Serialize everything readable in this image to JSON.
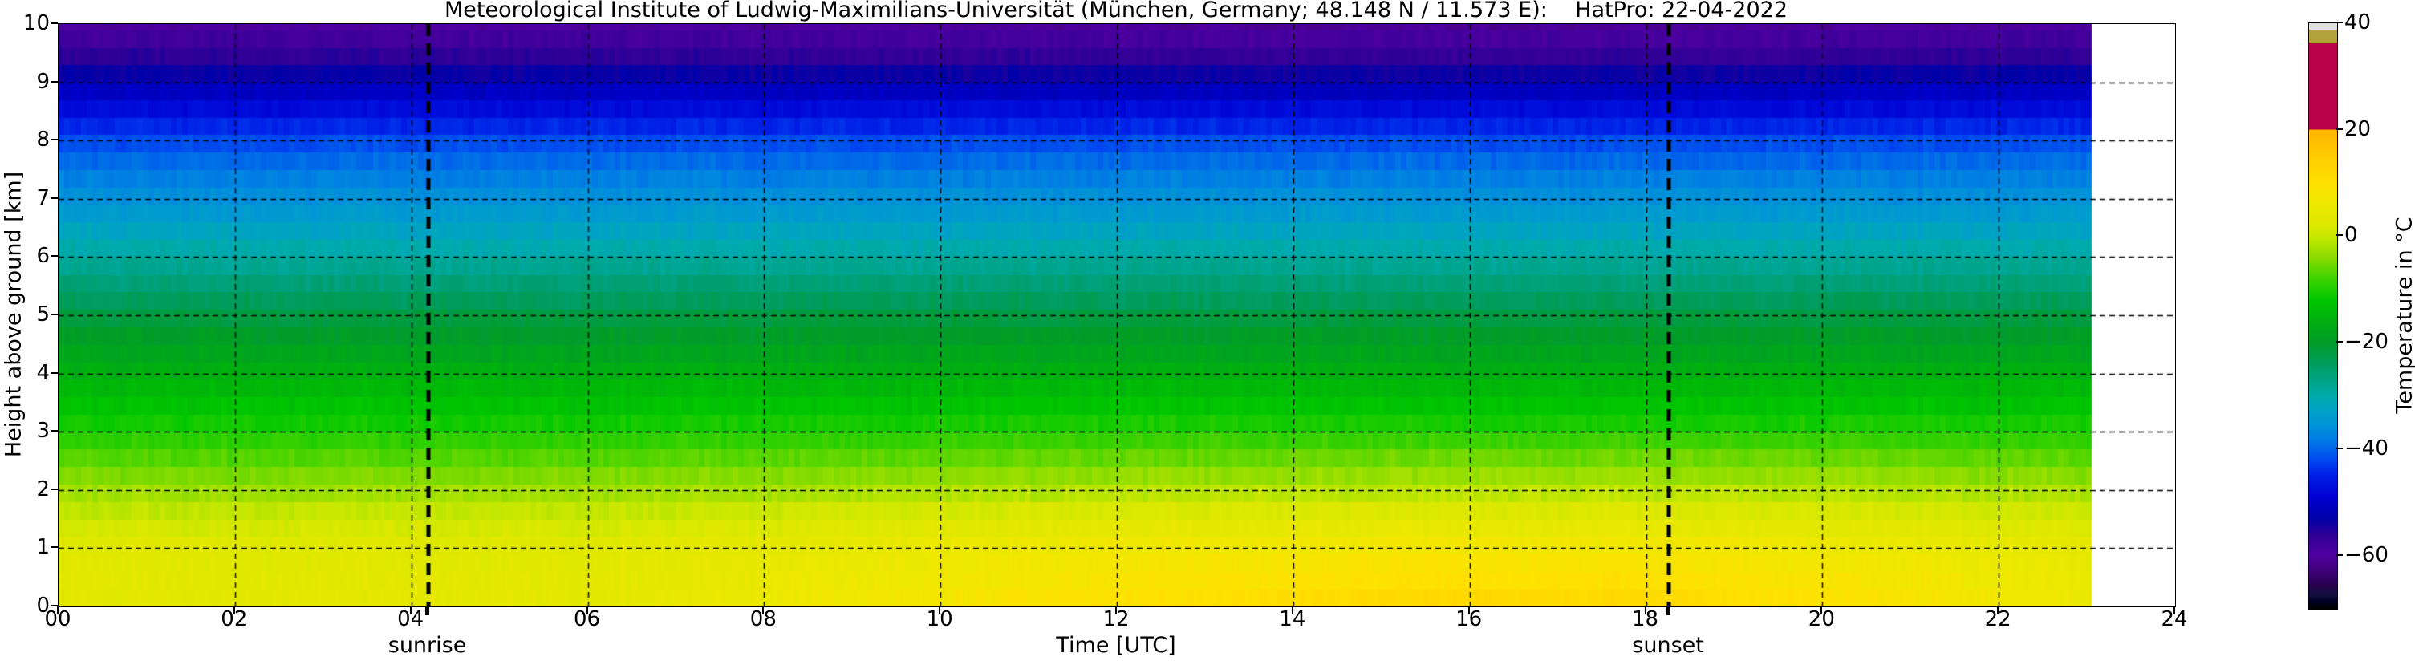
{
  "title": "Meteorological Institute of Ludwig-Maximilians-Universität (München, Germany; 48.148 N / 11.573 E):    HatPro: 22-04-2022",
  "axes": {
    "x": {
      "label": "Time [UTC]",
      "range_hours": [
        0,
        24
      ],
      "ticks": [
        {
          "hour": 0,
          "label": "00"
        },
        {
          "hour": 2,
          "label": "02"
        },
        {
          "hour": 4,
          "label": "04"
        },
        {
          "hour": 6,
          "label": "06"
        },
        {
          "hour": 8,
          "label": "08"
        },
        {
          "hour": 10,
          "label": "10"
        },
        {
          "hour": 12,
          "label": "12"
        },
        {
          "hour": 14,
          "label": "14"
        },
        {
          "hour": 16,
          "label": "16"
        },
        {
          "hour": 18,
          "label": "18"
        },
        {
          "hour": 20,
          "label": "20"
        },
        {
          "hour": 22,
          "label": "22"
        },
        {
          "hour": 24,
          "label": "24"
        }
      ]
    },
    "y": {
      "label": "Height above ground [km]",
      "range_km": [
        0,
        10
      ],
      "ticks": [
        {
          "km": 0,
          "label": "0"
        },
        {
          "km": 1,
          "label": "1"
        },
        {
          "km": 2,
          "label": "2"
        },
        {
          "km": 3,
          "label": "3"
        },
        {
          "km": 4,
          "label": "4"
        },
        {
          "km": 5,
          "label": "5"
        },
        {
          "km": 6,
          "label": "6"
        },
        {
          "km": 7,
          "label": "7"
        },
        {
          "km": 8,
          "label": "8"
        },
        {
          "km": 9,
          "label": "9"
        },
        {
          "km": 10,
          "label": "10"
        }
      ]
    }
  },
  "annotations": {
    "sunrise": {
      "label": "sunrise",
      "hour": 4.19
    },
    "sunset": {
      "label": "sunset",
      "hour": 18.26
    }
  },
  "colorbar": {
    "label": "Temperature in  °C",
    "range": [
      -70,
      40
    ],
    "ticks": [
      {
        "value": 40,
        "label": "40"
      },
      {
        "value": 20,
        "label": "20"
      },
      {
        "value": 0,
        "label": "0"
      },
      {
        "value": -20,
        "label": "−20"
      },
      {
        "value": -40,
        "label": "−40"
      },
      {
        "value": -60,
        "label": "−60"
      }
    ]
  },
  "chart_data": {
    "type": "heatmap",
    "title": "Meteorological Institute of Ludwig-Maximilians-Universität (München, Germany; 48.148 N / 11.573 E):    HatPro: 22-04-2022",
    "xlabel": "Time [UTC]",
    "ylabel": "Height above ground [km]",
    "x_range_hours": [
      0,
      24
    ],
    "data_end_hour": 23.05,
    "y_range_km": [
      0,
      10
    ],
    "colorbar_label": "Temperature in  °C",
    "colorbar_range_c": [
      -70,
      40
    ],
    "sunrise_hour": 4.19,
    "sunset_hour": 18.26,
    "gridline_hours": [
      2,
      4,
      6,
      8,
      10,
      12,
      14,
      16,
      18,
      20,
      22
    ],
    "gridline_km": [
      1,
      2,
      3,
      4,
      5,
      6,
      7,
      8,
      9
    ],
    "colormap_stops_c_hex": [
      [
        40,
        "#DFDFDF"
      ],
      [
        38.8,
        "#DFDFDF"
      ],
      [
        38.75,
        "#B3A33B"
      ],
      [
        36.4,
        "#B3A33B"
      ],
      [
        36.35,
        "#B8004B"
      ],
      [
        20.05,
        "#B8004B"
      ],
      [
        20,
        "#FFB400"
      ],
      [
        14.5,
        "#FFCE00"
      ],
      [
        10,
        "#FFE100"
      ],
      [
        6,
        "#EEE800"
      ],
      [
        2,
        "#DCE800"
      ],
      [
        0,
        "#C8E800"
      ],
      [
        -4,
        "#8ADC00"
      ],
      [
        -8,
        "#3CD200"
      ],
      [
        -12,
        "#00C800"
      ],
      [
        -15,
        "#00B40A"
      ],
      [
        -20,
        "#009C28"
      ],
      [
        -24,
        "#009C5F"
      ],
      [
        -28,
        "#00A591"
      ],
      [
        -30,
        "#00ABAB"
      ],
      [
        -33,
        "#00A0C8"
      ],
      [
        -36,
        "#0090DC"
      ],
      [
        -39,
        "#0073E6"
      ],
      [
        -42,
        "#0049F0"
      ],
      [
        -45,
        "#001EE6"
      ],
      [
        -49,
        "#0000D2"
      ],
      [
        -53,
        "#0000A8"
      ],
      [
        -56,
        "#2D0096"
      ],
      [
        -60,
        "#5000A0"
      ],
      [
        -63,
        "#3F0078"
      ],
      [
        -65.5,
        "#28004F"
      ],
      [
        -67.5,
        "#0F0F3C"
      ],
      [
        -68.5,
        "#000028"
      ],
      [
        -70,
        "#000000"
      ]
    ],
    "profile_heights_km": [
      0,
      0.5,
      1,
      1.5,
      2,
      2.5,
      3,
      3.5,
      4,
      4.5,
      5,
      5.5,
      6,
      6.5,
      7,
      7.5,
      8,
      8.5,
      9,
      9.5,
      10
    ],
    "profile_times_utc": [
      0,
      6,
      12,
      15.5,
      18.5,
      23.05
    ],
    "temperature_profiles_c": [
      [
        3.5,
        3.2,
        2.8,
        0.5,
        -3.0,
        -6.5,
        -10.0,
        -13.0,
        -16.0,
        -19.0,
        -22.0,
        -25.5,
        -29.0,
        -32.5,
        -35.5,
        -38.5,
        -42.0,
        -47.0,
        -52.0,
        -56.5,
        -60.0
      ],
      [
        4.0,
        3.5,
        3.0,
        0.8,
        -2.8,
        -6.3,
        -10.0,
        -13.0,
        -16.0,
        -19.0,
        -22.0,
        -25.5,
        -29.0,
        -32.5,
        -35.5,
        -38.5,
        -42.0,
        -47.0,
        -52.0,
        -56.5,
        -60.0
      ],
      [
        10.0,
        8.0,
        6.5,
        3.0,
        -1.5,
        -5.5,
        -9.5,
        -12.8,
        -16.0,
        -19.0,
        -22.0,
        -25.5,
        -29.0,
        -32.5,
        -35.5,
        -38.5,
        -42.0,
        -47.0,
        -52.5,
        -57.0,
        -60.5
      ],
      [
        13.0,
        10.0,
        7.5,
        3.8,
        -1.0,
        -5.0,
        -9.5,
        -12.8,
        -16.0,
        -19.0,
        -22.0,
        -25.5,
        -29.0,
        -32.5,
        -35.5,
        -38.5,
        -42.0,
        -47.0,
        -52.5,
        -57.0,
        -60.5
      ],
      [
        12.0,
        9.5,
        7.0,
        3.5,
        -1.0,
        -5.0,
        -9.5,
        -12.8,
        -16.0,
        -19.0,
        -22.0,
        -25.5,
        -29.0,
        -32.5,
        -35.5,
        -38.5,
        -42.0,
        -47.0,
        -52.5,
        -57.0,
        -60.5
      ],
      [
        5.5,
        5.0,
        4.2,
        1.5,
        -2.2,
        -6.0,
        -9.8,
        -13.0,
        -16.0,
        -19.0,
        -22.0,
        -25.5,
        -29.0,
        -32.5,
        -35.5,
        -38.5,
        -42.0,
        -47.0,
        -52.0,
        -56.5,
        -60.0
      ]
    ]
  }
}
